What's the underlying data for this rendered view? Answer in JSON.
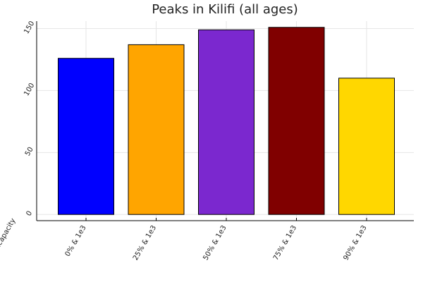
{
  "chart_data": {
    "type": "bar",
    "title": "Peaks in Kilifi (all ages)",
    "xlabel": "",
    "ylabel": "",
    "categories": [
      "0% & 1e3",
      "25% & 1e3",
      "50% & 1e3",
      "75% & 1e3",
      "90% & 1e3"
    ],
    "values": [
      126,
      137,
      149,
      151,
      110
    ],
    "colors": [
      "#0000ff",
      "#ffa500",
      "#7b28cf",
      "#800000",
      "#ffd700"
    ],
    "y_ticks": [
      0,
      50,
      100,
      150
    ],
    "ylim": [
      -5,
      156
    ],
    "x_axis_extra_tick_label": "protection&capacity",
    "grid": true,
    "legend": "none"
  }
}
